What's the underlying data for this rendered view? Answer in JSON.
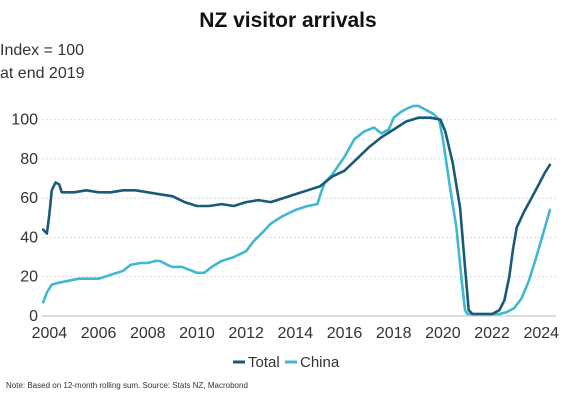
{
  "chart_data": {
    "type": "line",
    "title": "NZ visitor arrivals",
    "ylabel_line1": "Index = 100",
    "ylabel_line2": "at end 2019",
    "xlabel": "",
    "xlim": [
      2003.7,
      2024.6
    ],
    "ylim": [
      0,
      110
    ],
    "y_ticks": [
      0,
      20,
      40,
      60,
      80,
      100
    ],
    "x_ticks": [
      2004,
      2006,
      2008,
      2010,
      2012,
      2014,
      2016,
      2018,
      2020,
      2022,
      2024
    ],
    "grid": "horizontal",
    "legend_position": "bottom-center",
    "note": "Note: Based on 12-month rolling sum.  Source: Stats NZ, Macrobond",
    "series": [
      {
        "name": "Total",
        "color": "#1a5a78",
        "points": [
          [
            2003.75,
            44
          ],
          [
            2003.9,
            42
          ],
          [
            2004.0,
            52
          ],
          [
            2004.1,
            64
          ],
          [
            2004.25,
            68
          ],
          [
            2004.4,
            67
          ],
          [
            2004.5,
            63
          ],
          [
            2005.0,
            63
          ],
          [
            2005.5,
            64
          ],
          [
            2006.0,
            63
          ],
          [
            2006.5,
            63
          ],
          [
            2007.0,
            64
          ],
          [
            2007.5,
            64
          ],
          [
            2008.0,
            63
          ],
          [
            2008.5,
            62
          ],
          [
            2009.0,
            61
          ],
          [
            2009.5,
            58
          ],
          [
            2010.0,
            56
          ],
          [
            2010.5,
            56
          ],
          [
            2011.0,
            57
          ],
          [
            2011.5,
            56
          ],
          [
            2012.0,
            58
          ],
          [
            2012.5,
            59
          ],
          [
            2013.0,
            58
          ],
          [
            2013.5,
            60
          ],
          [
            2014.0,
            62
          ],
          [
            2014.5,
            64
          ],
          [
            2015.0,
            66
          ],
          [
            2015.5,
            71
          ],
          [
            2016.0,
            74
          ],
          [
            2016.5,
            80
          ],
          [
            2017.0,
            86
          ],
          [
            2017.5,
            91
          ],
          [
            2018.0,
            95
          ],
          [
            2018.5,
            99
          ],
          [
            2019.0,
            101
          ],
          [
            2019.5,
            101
          ],
          [
            2019.9,
            100
          ],
          [
            2020.1,
            94
          ],
          [
            2020.4,
            78
          ],
          [
            2020.7,
            55
          ],
          [
            2020.9,
            25
          ],
          [
            2021.05,
            3
          ],
          [
            2021.2,
            1
          ],
          [
            2022.0,
            1
          ],
          [
            2022.3,
            3
          ],
          [
            2022.5,
            8
          ],
          [
            2022.7,
            20
          ],
          [
            2022.85,
            34
          ],
          [
            2023.0,
            45
          ],
          [
            2023.3,
            53
          ],
          [
            2023.6,
            60
          ],
          [
            2023.9,
            67
          ],
          [
            2024.15,
            73
          ],
          [
            2024.35,
            77
          ]
        ]
      },
      {
        "name": "China",
        "color": "#3fb8d0",
        "points": [
          [
            2003.75,
            7
          ],
          [
            2003.9,
            12
          ],
          [
            2004.1,
            16
          ],
          [
            2004.4,
            17
          ],
          [
            2004.8,
            18
          ],
          [
            2005.2,
            19
          ],
          [
            2005.6,
            19
          ],
          [
            2006.0,
            19
          ],
          [
            2006.5,
            21
          ],
          [
            2007.0,
            23
          ],
          [
            2007.3,
            26
          ],
          [
            2007.7,
            27
          ],
          [
            2008.0,
            27
          ],
          [
            2008.3,
            28
          ],
          [
            2008.5,
            28
          ],
          [
            2008.8,
            26
          ],
          [
            2009.0,
            25
          ],
          [
            2009.4,
            25
          ],
          [
            2009.8,
            23
          ],
          [
            2010.0,
            22
          ],
          [
            2010.3,
            22
          ],
          [
            2010.6,
            25
          ],
          [
            2011.0,
            28
          ],
          [
            2011.5,
            30
          ],
          [
            2012.0,
            33
          ],
          [
            2012.3,
            38
          ],
          [
            2012.7,
            43
          ],
          [
            2013.0,
            47
          ],
          [
            2013.5,
            51
          ],
          [
            2014.0,
            54
          ],
          [
            2014.5,
            56
          ],
          [
            2014.9,
            57
          ],
          [
            2015.05,
            63
          ],
          [
            2015.2,
            68
          ],
          [
            2015.5,
            72
          ],
          [
            2016.0,
            81
          ],
          [
            2016.4,
            90
          ],
          [
            2016.8,
            94
          ],
          [
            2017.2,
            96
          ],
          [
            2017.5,
            93
          ],
          [
            2017.8,
            95
          ],
          [
            2018.0,
            101
          ],
          [
            2018.3,
            104
          ],
          [
            2018.6,
            106
          ],
          [
            2018.8,
            107
          ],
          [
            2019.0,
            107
          ],
          [
            2019.3,
            105
          ],
          [
            2019.6,
            103
          ],
          [
            2019.85,
            100
          ],
          [
            2020.0,
            90
          ],
          [
            2020.3,
            65
          ],
          [
            2020.55,
            45
          ],
          [
            2020.75,
            20
          ],
          [
            2020.9,
            3
          ],
          [
            2021.0,
            1
          ],
          [
            2022.3,
            1
          ],
          [
            2022.6,
            2
          ],
          [
            2022.9,
            4
          ],
          [
            2023.2,
            9
          ],
          [
            2023.5,
            18
          ],
          [
            2023.8,
            30
          ],
          [
            2024.1,
            43
          ],
          [
            2024.35,
            54
          ]
        ]
      }
    ]
  }
}
